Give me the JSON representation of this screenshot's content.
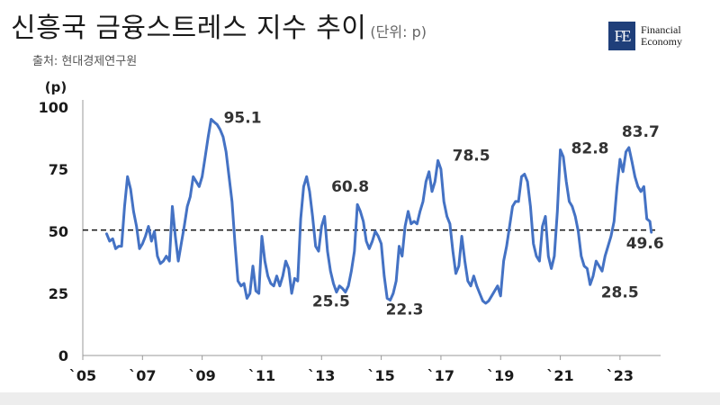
{
  "header": {
    "title": "신흥국 금융스트레스 지수 추이",
    "unit": "(단위: p)",
    "source": "출처: 현대경제연구원"
  },
  "logo": {
    "mark": "FE",
    "line1": "Financial",
    "line2": "Economy"
  },
  "chart_data": {
    "type": "line",
    "ylabel": "(p)",
    "xlabel": "",
    "ylim": [
      0,
      100
    ],
    "xlim": [
      2005,
      2023.5
    ],
    "y_ticks": [
      0,
      25,
      50,
      75,
      100
    ],
    "x_ticks": [
      {
        "label": "`05",
        "value": 2005
      },
      {
        "label": "`07",
        "value": 2007
      },
      {
        "label": "`09",
        "value": 2009
      },
      {
        "label": "`11",
        "value": 2011
      },
      {
        "label": "`13",
        "value": 2013
      },
      {
        "label": "`15",
        "value": 2015
      },
      {
        "label": "`17",
        "value": 2017
      },
      {
        "label": "`19",
        "value": 2019
      },
      {
        "label": "`21",
        "value": 2021
      },
      {
        "label": "`23",
        "value": 2023
      }
    ],
    "reference_line": 50.5,
    "series": [
      {
        "color": "#4472c4",
        "points": [
          [
            2005.8,
            49
          ],
          [
            2005.9,
            46
          ],
          [
            2006.0,
            47
          ],
          [
            2006.1,
            43
          ],
          [
            2006.2,
            44
          ],
          [
            2006.3,
            44
          ],
          [
            2006.4,
            60
          ],
          [
            2006.5,
            72
          ],
          [
            2006.6,
            67
          ],
          [
            2006.7,
            58
          ],
          [
            2006.8,
            52
          ],
          [
            2006.9,
            43
          ],
          [
            2007.0,
            45
          ],
          [
            2007.1,
            48
          ],
          [
            2007.2,
            52
          ],
          [
            2007.3,
            46
          ],
          [
            2007.4,
            50
          ],
          [
            2007.5,
            40
          ],
          [
            2007.6,
            37
          ],
          [
            2007.7,
            38
          ],
          [
            2007.8,
            40
          ],
          [
            2007.9,
            38
          ],
          [
            2008.0,
            60
          ],
          [
            2008.1,
            48
          ],
          [
            2008.2,
            38
          ],
          [
            2008.3,
            45
          ],
          [
            2008.4,
            52
          ],
          [
            2008.5,
            60
          ],
          [
            2008.6,
            64
          ],
          [
            2008.7,
            72
          ],
          [
            2008.8,
            70
          ],
          [
            2008.9,
            68
          ],
          [
            2009.0,
            72
          ],
          [
            2009.1,
            80
          ],
          [
            2009.2,
            88
          ],
          [
            2009.3,
            95.1
          ],
          [
            2009.4,
            94
          ],
          [
            2009.5,
            93
          ],
          [
            2009.6,
            91
          ],
          [
            2009.7,
            88
          ],
          [
            2009.8,
            82
          ],
          [
            2009.9,
            72
          ],
          [
            2010.0,
            62
          ],
          [
            2010.1,
            45
          ],
          [
            2010.2,
            30
          ],
          [
            2010.3,
            28
          ],
          [
            2010.4,
            29
          ],
          [
            2010.5,
            23
          ],
          [
            2010.6,
            25
          ],
          [
            2010.7,
            36
          ],
          [
            2010.8,
            26
          ],
          [
            2010.9,
            25
          ],
          [
            2011.0,
            48
          ],
          [
            2011.1,
            38
          ],
          [
            2011.2,
            32
          ],
          [
            2011.3,
            29
          ],
          [
            2011.4,
            28
          ],
          [
            2011.5,
            32
          ],
          [
            2011.6,
            28
          ],
          [
            2011.7,
            32
          ],
          [
            2011.8,
            38
          ],
          [
            2011.9,
            35
          ],
          [
            2012.0,
            25
          ],
          [
            2012.1,
            31
          ],
          [
            2012.2,
            30
          ],
          [
            2012.3,
            55
          ],
          [
            2012.4,
            68
          ],
          [
            2012.5,
            72
          ],
          [
            2012.6,
            66
          ],
          [
            2012.7,
            56
          ],
          [
            2012.8,
            44
          ],
          [
            2012.9,
            42
          ],
          [
            2013.0,
            52
          ],
          [
            2013.1,
            56
          ],
          [
            2013.2,
            42
          ],
          [
            2013.3,
            34
          ],
          [
            2013.4,
            29
          ],
          [
            2013.5,
            25.5
          ],
          [
            2013.6,
            28
          ],
          [
            2013.7,
            27
          ],
          [
            2013.8,
            25.5
          ],
          [
            2013.9,
            28
          ],
          [
            2014.0,
            34
          ],
          [
            2014.1,
            42
          ],
          [
            2014.2,
            60.8
          ],
          [
            2014.3,
            58
          ],
          [
            2014.4,
            54
          ],
          [
            2014.5,
            46
          ],
          [
            2014.6,
            43
          ],
          [
            2014.7,
            46
          ],
          [
            2014.8,
            50
          ],
          [
            2014.9,
            48
          ],
          [
            2015.0,
            45
          ],
          [
            2015.1,
            32
          ],
          [
            2015.2,
            23
          ],
          [
            2015.3,
            22.3
          ],
          [
            2015.4,
            25
          ],
          [
            2015.5,
            30
          ],
          [
            2015.6,
            44
          ],
          [
            2015.7,
            40
          ],
          [
            2015.8,
            52
          ],
          [
            2015.9,
            58
          ],
          [
            2016.0,
            53
          ],
          [
            2016.1,
            54
          ],
          [
            2016.2,
            53
          ],
          [
            2016.3,
            58
          ],
          [
            2016.4,
            62
          ],
          [
            2016.5,
            70
          ],
          [
            2016.6,
            74
          ],
          [
            2016.7,
            66
          ],
          [
            2016.8,
            70
          ],
          [
            2016.9,
            78.5
          ],
          [
            2017.0,
            75
          ],
          [
            2017.1,
            62
          ],
          [
            2017.2,
            56
          ],
          [
            2017.3,
            53
          ],
          [
            2017.4,
            42
          ],
          [
            2017.5,
            33
          ],
          [
            2017.6,
            36
          ],
          [
            2017.7,
            48
          ],
          [
            2017.8,
            38
          ],
          [
            2017.9,
            30
          ],
          [
            2018.0,
            28
          ],
          [
            2018.1,
            32
          ],
          [
            2018.2,
            28
          ],
          [
            2018.3,
            25
          ],
          [
            2018.4,
            22
          ],
          [
            2018.5,
            21
          ],
          [
            2018.6,
            22
          ],
          [
            2018.7,
            24
          ],
          [
            2018.8,
            26
          ],
          [
            2018.9,
            28
          ],
          [
            2019.0,
            24
          ],
          [
            2019.1,
            38
          ],
          [
            2019.2,
            44
          ],
          [
            2019.3,
            52
          ],
          [
            2019.4,
            60
          ],
          [
            2019.5,
            62
          ],
          [
            2019.6,
            62
          ],
          [
            2019.7,
            72
          ],
          [
            2019.8,
            73
          ],
          [
            2019.9,
            70
          ],
          [
            2020.0,
            60
          ],
          [
            2020.1,
            45
          ],
          [
            2020.2,
            40
          ],
          [
            2020.3,
            38
          ],
          [
            2020.4,
            52
          ],
          [
            2020.5,
            56
          ],
          [
            2020.6,
            40
          ],
          [
            2020.7,
            35
          ],
          [
            2020.8,
            40
          ],
          [
            2020.9,
            58
          ],
          [
            2021.0,
            82.8
          ],
          [
            2021.1,
            80
          ],
          [
            2021.2,
            70
          ],
          [
            2021.3,
            62
          ],
          [
            2021.4,
            60
          ],
          [
            2021.5,
            56
          ],
          [
            2021.6,
            50
          ],
          [
            2021.7,
            40
          ],
          [
            2021.8,
            36
          ],
          [
            2021.9,
            35
          ],
          [
            2022.0,
            28.5
          ],
          [
            2022.1,
            32
          ],
          [
            2022.2,
            38
          ],
          [
            2022.3,
            36
          ],
          [
            2022.4,
            34
          ],
          [
            2022.5,
            40
          ],
          [
            2022.6,
            44
          ],
          [
            2022.7,
            48
          ],
          [
            2022.8,
            54
          ],
          [
            2022.9,
            68
          ],
          [
            2023.0,
            79
          ],
          [
            2023.1,
            74
          ],
          [
            2023.2,
            82
          ],
          [
            2023.3,
            83.7
          ],
          [
            2023.4,
            78
          ],
          [
            2023.5,
            72
          ],
          [
            2023.6,
            68
          ],
          [
            2023.7,
            66
          ],
          [
            2023.8,
            68
          ],
          [
            2023.9,
            55
          ],
          [
            2024.0,
            54
          ],
          [
            2024.05,
            49.6
          ]
        ]
      }
    ],
    "annotations": [
      {
        "text": "95.1",
        "x": 2009.3,
        "y": 95.1
      },
      {
        "text": "60.8",
        "x": 2014.2,
        "y": 60.8
      },
      {
        "text": "25.5",
        "x": 2013.8,
        "y": 25.5
      },
      {
        "text": "22.3",
        "x": 2015.3,
        "y": 22.3
      },
      {
        "text": "78.5",
        "x": 2016.9,
        "y": 78.5
      },
      {
        "text": "82.8",
        "x": 2021.0,
        "y": 82.8
      },
      {
        "text": "28.5",
        "x": 2022.0,
        "y": 28.5
      },
      {
        "text": "83.7",
        "x": 2023.3,
        "y": 83.7
      },
      {
        "text": "49.6",
        "x": 2024.05,
        "y": 49.6
      }
    ]
  }
}
